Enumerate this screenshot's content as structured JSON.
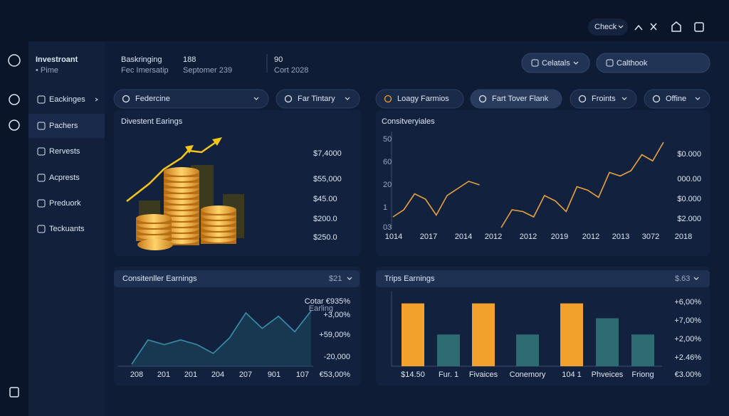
{
  "topbar": {
    "check": "Check"
  },
  "sidebar": {
    "brand": "Investroant",
    "brand_sub": "• Pime",
    "items": [
      "Eackinges",
      "Pachers",
      "Rervests",
      "Acprests",
      "Preduork",
      "Teckuants"
    ]
  },
  "header": {
    "stats": [
      {
        "label": "Baskringing",
        "sub": "Fec Imersatip"
      },
      {
        "label": "188",
        "sub": "Septomer 239"
      },
      {
        "label": "90",
        "sub": "Cort 2028"
      }
    ],
    "buttons": [
      "Celatals",
      "Calthook"
    ]
  },
  "filters": [
    "Federcine",
    "Far Tintary",
    "Loagy Farmios",
    "Fart Tover Flank",
    "Froints",
    "Offine"
  ],
  "panels": {
    "divestment": {
      "title": "Divestent Earings",
      "labels": [
        "$7,4000",
        "$55,000",
        "$45.00",
        "$200.0",
        "$250.0"
      ]
    },
    "line": {
      "type": "line",
      "title": "Consitveryiales",
      "y_labels": [
        "50",
        "60",
        "20",
        "1",
        "03"
      ],
      "x_labels": [
        "1014",
        "2017",
        "2014",
        "2012",
        "2012",
        "2019",
        "2012",
        "2013",
        "3072",
        "2018"
      ],
      "right_labels": [
        "$0.000",
        "000.00",
        "$0.000",
        "$2.000"
      ],
      "ylim": [
        0,
        100
      ],
      "series": [
        {
          "color": "#e9a23b",
          "values": [
            12,
            20,
            38,
            32,
            14,
            36,
            44,
            52,
            48,
            null,
            0,
            20,
            18,
            12,
            36,
            30,
            18,
            46,
            42,
            34,
            62,
            58,
            64,
            82,
            75,
            96
          ]
        }
      ]
    },
    "area": {
      "type": "area",
      "title": "Consitenller Earnings",
      "tag": "$21",
      "annotation": "Cotar €935%",
      "annotation_sub": "Earling",
      "x_labels": [
        "208",
        "201",
        "201",
        "204",
        "207",
        "901",
        "107"
      ],
      "right_labels": [
        "+3,00%",
        "+59,00%",
        "-20,000",
        "€53,00%"
      ],
      "ylim": [
        0,
        100
      ],
      "series": [
        {
          "color": "#3a90a8",
          "values": [
            3,
            39,
            32,
            39,
            32,
            19,
            42,
            79,
            56,
            74,
            51,
            82
          ]
        }
      ]
    },
    "bars": {
      "type": "bar",
      "title": "Trips Earnings",
      "tag": "$.63",
      "categories": [
        "$14.50",
        "Fur. 1",
        "Fivaices",
        "Conemory",
        "104 1",
        "Phveices",
        "Friong"
      ],
      "right_labels": [
        "+6,00%",
        "+7,00%",
        "+2,00%",
        "+2.46%",
        "€3.00%"
      ],
      "ylim": [
        0,
        100
      ],
      "values": [
        93,
        47,
        93,
        47,
        93,
        71,
        47
      ],
      "colors": [
        "#f2a12c",
        "#2f6b73",
        "#f2a12c",
        "#2f6b73",
        "#f2a12c",
        "#2f6b73",
        "#2f6b73"
      ]
    }
  }
}
